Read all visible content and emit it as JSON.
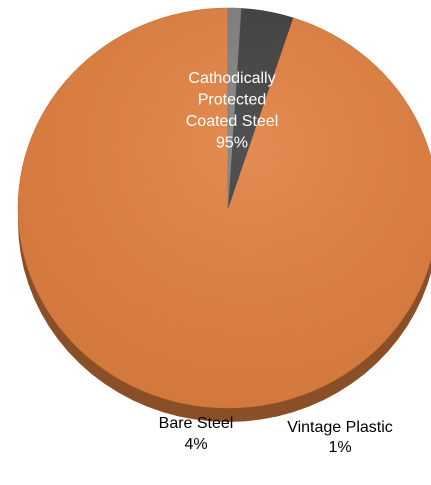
{
  "chart_data": {
    "type": "pie",
    "style": "3d",
    "slices": [
      {
        "label": "Cathodically Protected Coated Steel",
        "value": 95,
        "value_label": "95%",
        "color": "#E07F3F",
        "label_lines": [
          "Cathodically",
          "Protected",
          "Coated Steel",
          "95%"
        ],
        "label_color": "#ffffff"
      },
      {
        "label": "Bare Steel",
        "value": 4,
        "value_label": "4%",
        "color": "#3E3E3E",
        "label_lines": [
          "Bare Steel",
          "4%"
        ],
        "label_color": "#000000"
      },
      {
        "label": "Vintage Plastic",
        "value": 1,
        "value_label": "1%",
        "color": "#7F7F7F",
        "label_lines": [
          "Vintage Plastic",
          "1%"
        ],
        "label_color": "#000000"
      }
    ]
  }
}
